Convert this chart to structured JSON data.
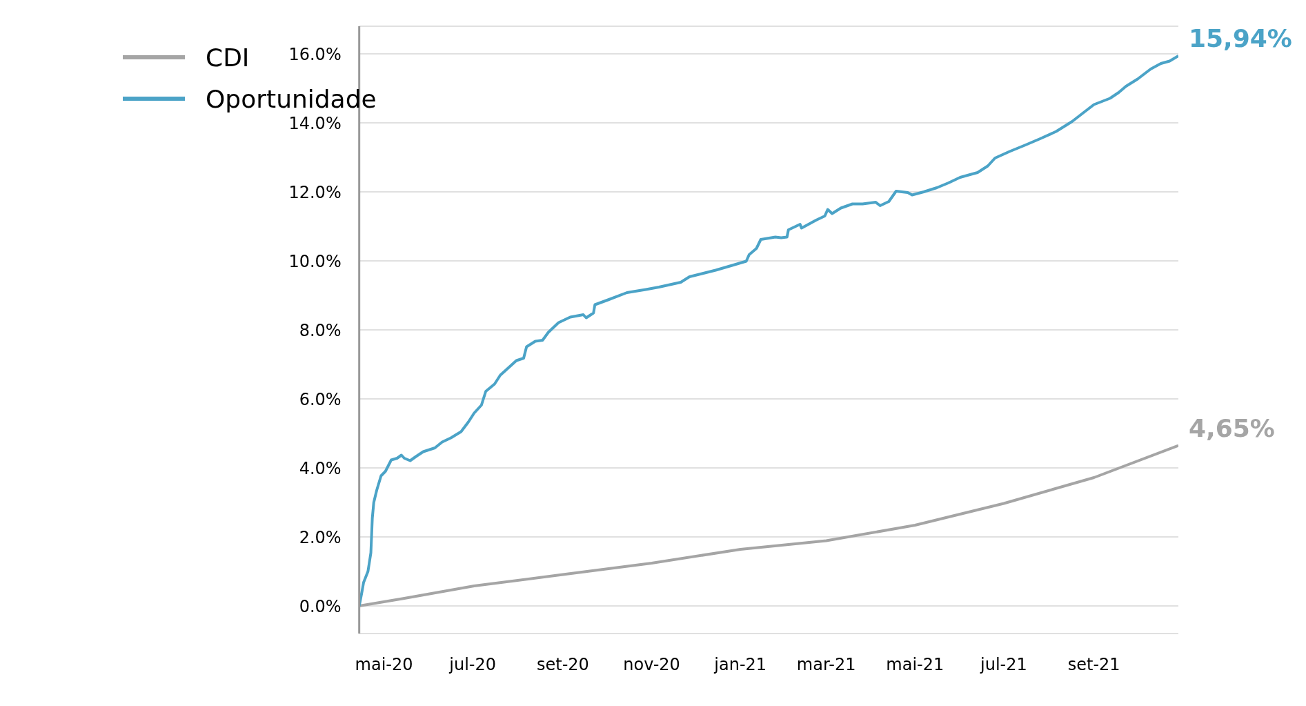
{
  "chart_data": {
    "type": "line",
    "ylim": [
      -0.8,
      16.8
    ],
    "yticks": [
      {
        "value": 0,
        "label": "0.0%"
      },
      {
        "value": 2,
        "label": "2.0%"
      },
      {
        "value": 4,
        "label": "4.0%"
      },
      {
        "value": 6,
        "label": "6.0%"
      },
      {
        "value": 8,
        "label": "8.0%"
      },
      {
        "value": 10,
        "label": "10.0%"
      },
      {
        "value": 12,
        "label": "12.0%"
      },
      {
        "value": 14,
        "label": "14.0%"
      },
      {
        "value": 16,
        "label": "16.0%"
      }
    ],
    "xlim": [
      "2020-04-14",
      "2021-10-29"
    ],
    "xticks": [
      {
        "value": "2020-05-01",
        "label": "mai-20"
      },
      {
        "value": "2020-07-01",
        "label": "jul-20"
      },
      {
        "value": "2020-09-01",
        "label": "set-20"
      },
      {
        "value": "2020-11-01",
        "label": "nov-20"
      },
      {
        "value": "2021-01-01",
        "label": "jan-21"
      },
      {
        "value": "2021-03-01",
        "label": "mar-21"
      },
      {
        "value": "2021-05-01",
        "label": "mai-21"
      },
      {
        "value": "2021-07-01",
        "label": "jul-21"
      },
      {
        "value": "2021-09-01",
        "label": "set-21"
      }
    ],
    "grid": "y",
    "legend": "top left",
    "marker": "none",
    "line_style": "solid",
    "series": [
      {
        "name": "CDI",
        "color": "#a5a5a5",
        "x": [
          "2020-04-14",
          "2020-05-15",
          "2020-07-02",
          "2020-09-01",
          "2020-11-01",
          "2021-01-01",
          "2021-03-01",
          "2021-05-01",
          "2021-07-01",
          "2021-09-01",
          "2021-10-29"
        ],
        "values": [
          0,
          0.22,
          0.58,
          0.91,
          1.24,
          1.64,
          1.89,
          2.34,
          2.97,
          3.72,
          4.65
        ]
      },
      {
        "name": "Oportunidade",
        "color": "#4ba3c7",
        "x": [
          "2020-04-14",
          "2020-04-16",
          "2020-04-17",
          "2020-04-20",
          "2020-04-22",
          "2020-04-23",
          "2020-04-24",
          "2020-04-26",
          "2020-04-29",
          "2020-05-02",
          "2020-05-06",
          "2020-05-10",
          "2020-05-13",
          "2020-05-15",
          "2020-05-19",
          "2020-05-23",
          "2020-05-28",
          "2020-06-05",
          "2020-06-10",
          "2020-06-16",
          "2020-06-23",
          "2020-06-28",
          "2020-07-02",
          "2020-07-07",
          "2020-07-10",
          "2020-07-16",
          "2020-07-20",
          "2020-07-25",
          "2020-07-31",
          "2020-08-05",
          "2020-08-07",
          "2020-08-13",
          "2020-08-18",
          "2020-08-22",
          "2020-08-29",
          "2020-09-06",
          "2020-09-15",
          "2020-09-17",
          "2020-09-22",
          "2020-09-23",
          "2020-10-02",
          "2020-10-15",
          "2020-10-28",
          "2020-11-06",
          "2020-11-21",
          "2020-11-27",
          "2020-12-15",
          "2020-12-28",
          "2021-01-05",
          "2021-01-07",
          "2021-01-12",
          "2021-01-15",
          "2021-01-25",
          "2021-01-29",
          "2021-02-02",
          "2021-02-03",
          "2021-02-11",
          "2021-02-12",
          "2021-02-22",
          "2021-02-28",
          "2021-03-02",
          "2021-03-05",
          "2021-03-11",
          "2021-03-19",
          "2021-03-26",
          "2021-04-04",
          "2021-04-07",
          "2021-04-13",
          "2021-04-18",
          "2021-04-26",
          "2021-04-29",
          "2021-05-07",
          "2021-05-16",
          "2021-05-24",
          "2021-06-01",
          "2021-06-13",
          "2021-06-20",
          "2021-06-25",
          "2021-07-05",
          "2021-07-16",
          "2021-07-26",
          "2021-08-06",
          "2021-08-17",
          "2021-08-24",
          "2021-09-01",
          "2021-09-12",
          "2021-09-18",
          "2021-09-23",
          "2021-10-01",
          "2021-10-10",
          "2021-10-17",
          "2021-10-23",
          "2021-10-29"
        ],
        "values": [
          0,
          0.44,
          0.68,
          1.0,
          1.54,
          2.55,
          3.0,
          3.35,
          3.77,
          3.9,
          4.23,
          4.28,
          4.37,
          4.28,
          4.21,
          4.33,
          4.47,
          4.58,
          4.75,
          4.87,
          5.05,
          5.33,
          5.59,
          5.82,
          6.22,
          6.43,
          6.69,
          6.88,
          7.11,
          7.18,
          7.51,
          7.67,
          7.7,
          7.93,
          8.21,
          8.37,
          8.44,
          8.35,
          8.49,
          8.73,
          8.87,
          9.08,
          9.17,
          9.24,
          9.38,
          9.54,
          9.73,
          9.89,
          9.99,
          10.18,
          10.36,
          10.62,
          10.69,
          10.67,
          10.69,
          10.9,
          11.06,
          10.95,
          11.18,
          11.3,
          11.49,
          11.37,
          11.53,
          11.65,
          11.65,
          11.7,
          11.6,
          11.72,
          12.02,
          11.98,
          11.91,
          12.0,
          12.12,
          12.26,
          12.42,
          12.56,
          12.75,
          12.98,
          13.17,
          13.36,
          13.54,
          13.75,
          14.04,
          14.27,
          14.53,
          14.71,
          14.88,
          15.06,
          15.27,
          15.56,
          15.72,
          15.79,
          15.94
        ]
      }
    ],
    "annotations": [
      {
        "text": "15,94%",
        "x": "2021-10-29",
        "y": 15.94
      },
      {
        "text": "4,65%",
        "x": "2021-10-29",
        "y": 4.65
      }
    ]
  }
}
